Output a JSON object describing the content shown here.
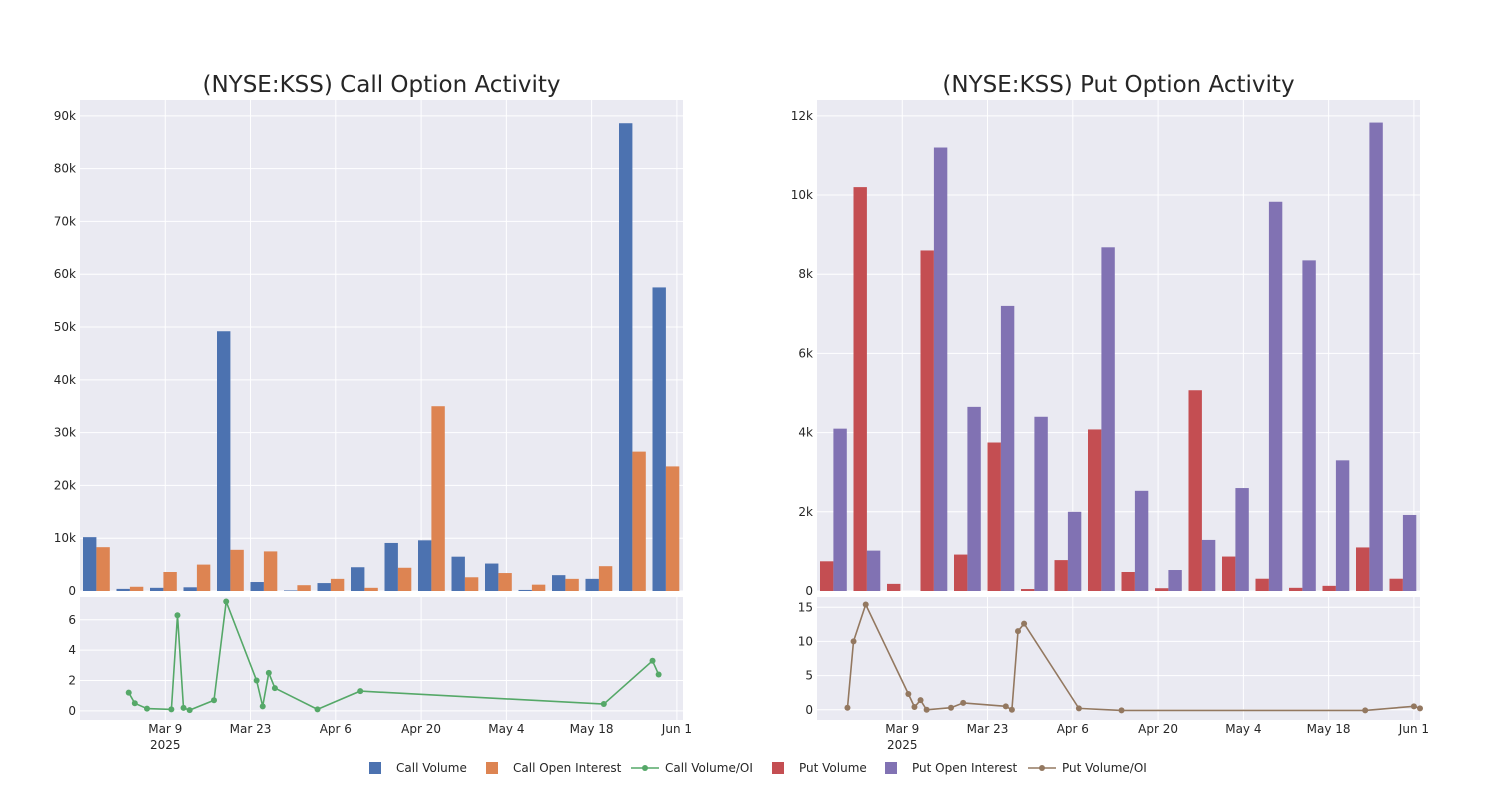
{
  "colors": {
    "background": "#ffffff",
    "plot_bg": "#eaeaf2",
    "grid": "#ffffff",
    "call_volume": "#4c72b0",
    "call_open_interest": "#dd8452",
    "call_vol_oi": "#55a868",
    "put_volume": "#c44e52",
    "put_open_interest": "#8172b3",
    "put_vol_oi": "#937860"
  },
  "legend": {
    "placement": "bottom-center",
    "items": [
      {
        "label": "Call Volume",
        "kind": "square",
        "color_key": "call_volume"
      },
      {
        "label": "Call Open Interest",
        "kind": "square",
        "color_key": "call_open_interest"
      },
      {
        "label": "Call Volume/OI",
        "kind": "line",
        "color_key": "call_vol_oi"
      },
      {
        "label": "Put Volume",
        "kind": "square",
        "color_key": "put_volume"
      },
      {
        "label": "Put Open Interest",
        "kind": "square",
        "color_key": "put_open_interest"
      },
      {
        "label": "Put Volume/OI",
        "kind": "line",
        "color_key": "put_vol_oi"
      }
    ]
  },
  "chart_data": [
    {
      "id": "call",
      "type": "bar",
      "title": "(NYSE:KSS) Call Option Activity",
      "xlabel": "",
      "ylabel": "",
      "grid": true,
      "ylim": [
        0,
        93000
      ],
      "yticks": [
        0,
        10000,
        20000,
        30000,
        40000,
        50000,
        60000,
        70000,
        80000,
        90000
      ],
      "ytick_labels": [
        "0",
        "10k",
        "20k",
        "30k",
        "40k",
        "50k",
        "60k",
        "70k",
        "80k",
        "90k"
      ],
      "series": [
        {
          "name": "Call Volume",
          "color_key": "call_volume",
          "values": [
            10200,
            400,
            600,
            700,
            49200,
            1700,
            100,
            1500,
            4500,
            9100,
            9600,
            6500,
            5200,
            200,
            3000,
            2300,
            88600,
            57500
          ]
        },
        {
          "name": "Call Open Interest",
          "color_key": "call_open_interest",
          "values": [
            8300,
            800,
            3600,
            5000,
            7800,
            7500,
            1100,
            2300,
            600,
            4400,
            35000,
            2600,
            3400,
            1200,
            2300,
            4700,
            26400,
            23600
          ]
        }
      ]
    },
    {
      "id": "put",
      "type": "bar",
      "title": "(NYSE:KSS) Put Option Activity",
      "xlabel": "",
      "ylabel": "",
      "grid": true,
      "ylim": [
        0,
        12400
      ],
      "yticks": [
        0,
        2000,
        4000,
        6000,
        8000,
        10000,
        12000
      ],
      "ytick_labels": [
        "0",
        "2k",
        "4k",
        "6k",
        "8k",
        "10k",
        "12k"
      ],
      "series": [
        {
          "name": "Put Volume",
          "color_key": "put_volume",
          "values": [
            750,
            10200,
            180,
            8600,
            920,
            3750,
            50,
            780,
            4080,
            480,
            70,
            5070,
            870,
            310,
            80,
            130,
            1100,
            310
          ]
        },
        {
          "name": "Put Open Interest",
          "color_key": "put_open_interest",
          "values": [
            4100,
            1020,
            0,
            11200,
            4650,
            7200,
            4400,
            2000,
            8680,
            2530,
            530,
            1290,
            2600,
            9830,
            8350,
            3300,
            11830,
            1920
          ]
        }
      ]
    },
    {
      "id": "call_ratio",
      "type": "line",
      "series_name": "Call Volume/OI",
      "color_key": "call_vol_oi",
      "x_start": "2025-02-23",
      "x_end": "2025-06-02",
      "ylim": [
        -0.6,
        7.5
      ],
      "yticks": [
        0,
        2,
        4,
        6
      ],
      "ytick_labels": [
        "0",
        "2",
        "4",
        "6"
      ],
      "xticks": [
        "2025-03-09",
        "2025-03-23",
        "2025-04-06",
        "2025-04-20",
        "2025-05-04",
        "2025-05-18",
        "2025-06-01"
      ],
      "xtick_labels": [
        "Mar 9",
        "Mar 23",
        "Apr 6",
        "Apr 20",
        "May 4",
        "May 18",
        "Jun 1"
      ],
      "xtick_sublabel": "2025",
      "points": [
        [
          "2025-03-03",
          1.2
        ],
        [
          "2025-03-04",
          0.5
        ],
        [
          "2025-03-06",
          0.15
        ],
        [
          "2025-03-10",
          0.1
        ],
        [
          "2025-03-11",
          6.3
        ],
        [
          "2025-03-12",
          0.2
        ],
        [
          "2025-03-13",
          0.05
        ],
        [
          "2025-03-17",
          0.7
        ],
        [
          "2025-03-19",
          7.2
        ],
        [
          "2025-03-24",
          2.0
        ],
        [
          "2025-03-25",
          0.3
        ],
        [
          "2025-03-26",
          2.5
        ],
        [
          "2025-03-27",
          1.5
        ],
        [
          "2025-04-03",
          0.1
        ],
        [
          "2025-04-10",
          1.3
        ],
        [
          "2025-05-20",
          0.45
        ],
        [
          "2025-05-28",
          3.3
        ],
        [
          "2025-05-29",
          2.4
        ]
      ]
    },
    {
      "id": "put_ratio",
      "type": "line",
      "series_name": "Put Volume/OI",
      "color_key": "put_vol_oi",
      "x_start": "2025-02-23",
      "x_end": "2025-06-02",
      "ylim": [
        -1.5,
        16.5
      ],
      "yticks": [
        0,
        5,
        10,
        15
      ],
      "ytick_labels": [
        "0",
        "5",
        "10",
        "15"
      ],
      "xticks": [
        "2025-03-09",
        "2025-03-23",
        "2025-04-06",
        "2025-04-20",
        "2025-05-04",
        "2025-05-18",
        "2025-06-01"
      ],
      "xtick_labels": [
        "Mar 9",
        "Mar 23",
        "Apr 6",
        "Apr 20",
        "May 4",
        "May 18",
        "Jun 1"
      ],
      "xtick_sublabel": "2025",
      "points": [
        [
          "2025-02-28",
          0.3
        ],
        [
          "2025-03-01",
          10.0
        ],
        [
          "2025-03-03",
          15.4
        ],
        [
          "2025-03-10",
          2.3
        ],
        [
          "2025-03-11",
          0.4
        ],
        [
          "2025-03-12",
          1.4
        ],
        [
          "2025-03-13",
          0.0
        ],
        [
          "2025-03-17",
          0.3
        ],
        [
          "2025-03-19",
          1.0
        ],
        [
          "2025-03-26",
          0.5
        ],
        [
          "2025-03-27",
          0.0
        ],
        [
          "2025-03-28",
          11.5
        ],
        [
          "2025-03-29",
          12.6
        ],
        [
          "2025-04-07",
          0.2
        ],
        [
          "2025-04-14",
          -0.1
        ],
        [
          "2025-05-24",
          -0.1
        ],
        [
          "2025-06-01",
          0.5
        ],
        [
          "2025-06-02",
          0.2
        ]
      ]
    }
  ]
}
